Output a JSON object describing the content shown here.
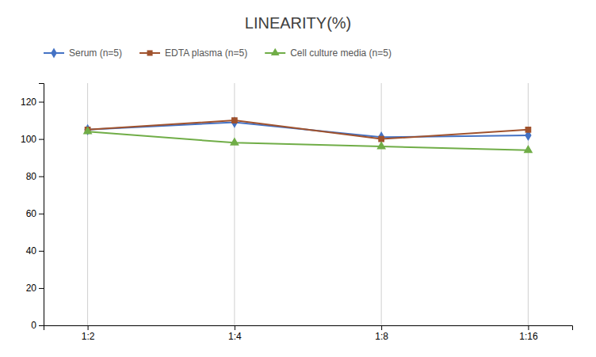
{
  "chart_data": {
    "type": "line",
    "title": "LINEARITY(%)",
    "categories": [
      "1:2",
      "1:4",
      "1:8",
      "1:16"
    ],
    "series": [
      {
        "name": "Serum (n=5)",
        "color": "#4472C4",
        "marker": "diamond",
        "values": [
          105,
          109,
          101,
          102
        ]
      },
      {
        "name": "EDTA plasma (n=5)",
        "color": "#A0522D",
        "marker": "square",
        "values": [
          105,
          110,
          100,
          105
        ]
      },
      {
        "name": "Cell culture media (n=5)",
        "color": "#70AD47",
        "marker": "triangle",
        "values": [
          104,
          98,
          96,
          94
        ]
      }
    ],
    "ylim": [
      0,
      130
    ],
    "yticks": [
      0,
      20,
      40,
      60,
      80,
      100,
      120
    ],
    "grid": true,
    "legend": "top-left"
  }
}
